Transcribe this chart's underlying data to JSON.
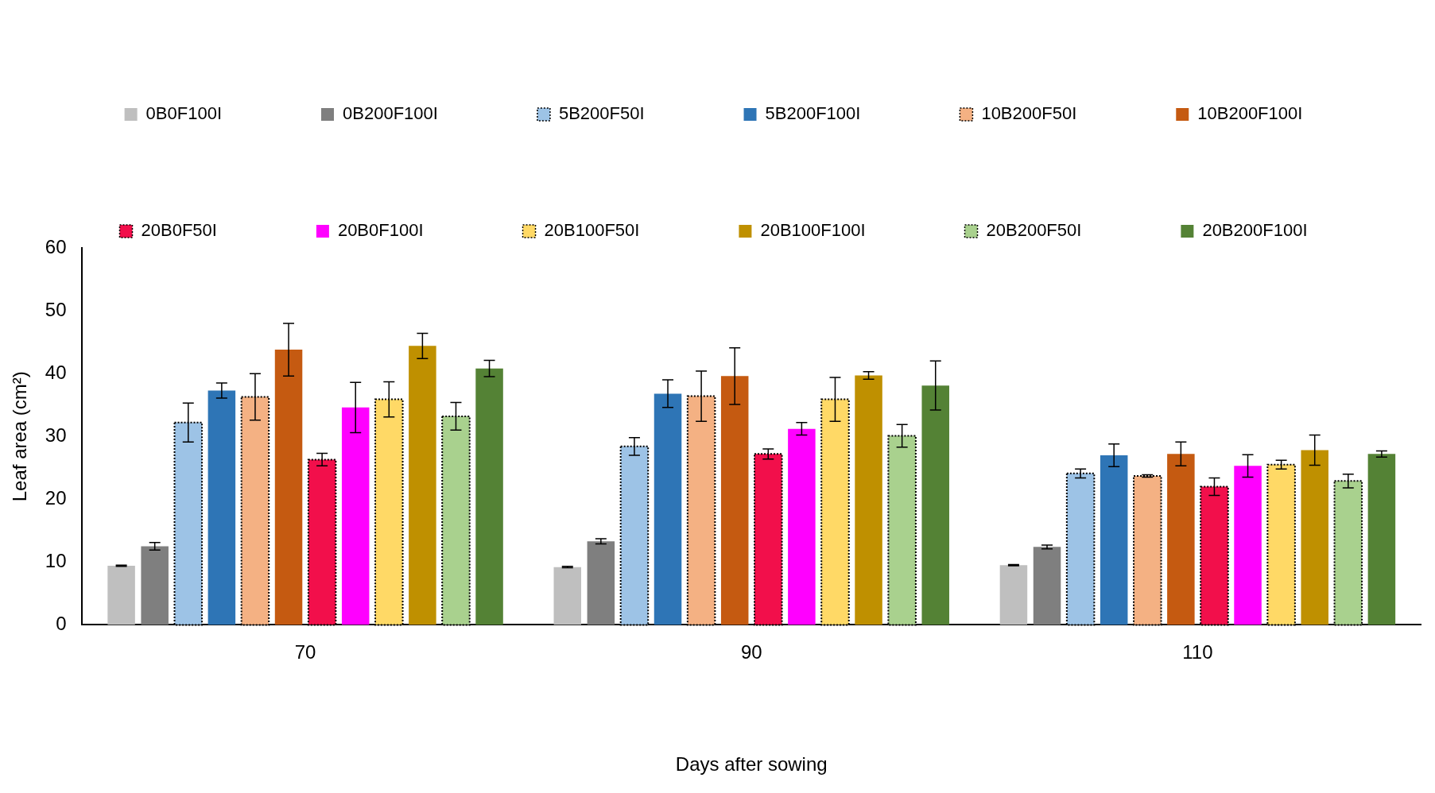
{
  "chart_data": {
    "type": "bar",
    "xlabel": "Days after sowing",
    "ylabel": "Leaf area (cm²)",
    "categories": [
      "70",
      "90",
      "110"
    ],
    "ylim": [
      0,
      60
    ],
    "yticks": [
      0,
      10,
      20,
      30,
      40,
      50,
      60
    ],
    "grid": false,
    "legend": "top",
    "series": [
      {
        "name": "0B0F100I",
        "color": "#bfbfbf",
        "values": [
          9.4,
          9.2,
          9.5
        ],
        "errors": [
          0.1,
          0.1,
          0.1
        ]
      },
      {
        "name": "0B200F100I",
        "color": "#7f7f7f",
        "values": [
          12.5,
          13.3,
          12.4
        ],
        "errors": [
          0.6,
          0.4,
          0.3
        ]
      },
      {
        "name": "5B200F50I",
        "color": "#9dc3e6",
        "line_style": "dotted",
        "values": [
          32.2,
          28.4,
          24.1
        ],
        "errors": [
          3.1,
          1.4,
          0.7
        ]
      },
      {
        "name": "5B200F100I",
        "color": "#2e75b6",
        "values": [
          37.3,
          36.8,
          27.0
        ],
        "errors": [
          1.2,
          2.2,
          1.8
        ]
      },
      {
        "name": "10B200F50I",
        "color": "#f4b183",
        "line_style": "dotted",
        "values": [
          36.3,
          36.4,
          23.7
        ],
        "errors": [
          3.7,
          4.0,
          0.2
        ]
      },
      {
        "name": "10B200F100I",
        "color": "#c55a11",
        "values": [
          43.8,
          39.6,
          27.2
        ],
        "errors": [
          4.2,
          4.5,
          1.9
        ]
      },
      {
        "name": "20B0F50I",
        "color": "#f20f4b",
        "line_style": "dotted",
        "values": [
          26.3,
          27.2,
          22.0
        ],
        "errors": [
          1.0,
          0.8,
          1.4
        ]
      },
      {
        "name": "20B0F100I",
        "color": "#ff00ff",
        "values": [
          34.6,
          31.2,
          25.3
        ],
        "errors": [
          4.0,
          1.0,
          1.8
        ]
      },
      {
        "name": "20B100F50I",
        "color": "#ffd966",
        "line_style": "dotted",
        "values": [
          35.9,
          35.9,
          25.5
        ],
        "errors": [
          2.8,
          3.5,
          0.7
        ]
      },
      {
        "name": "20B100F100I",
        "color": "#bf9000",
        "values": [
          44.4,
          39.7,
          27.8
        ],
        "errors": [
          2.0,
          0.6,
          2.4
        ]
      },
      {
        "name": "20B200F50I",
        "color": "#a9d18e",
        "line_style": "dotted",
        "values": [
          33.2,
          30.1,
          22.9
        ],
        "errors": [
          2.2,
          1.8,
          1.1
        ]
      },
      {
        "name": "20B200F100I",
        "color": "#548235",
        "values": [
          40.8,
          38.1,
          27.2
        ],
        "errors": [
          1.3,
          3.9,
          0.5
        ]
      }
    ]
  }
}
